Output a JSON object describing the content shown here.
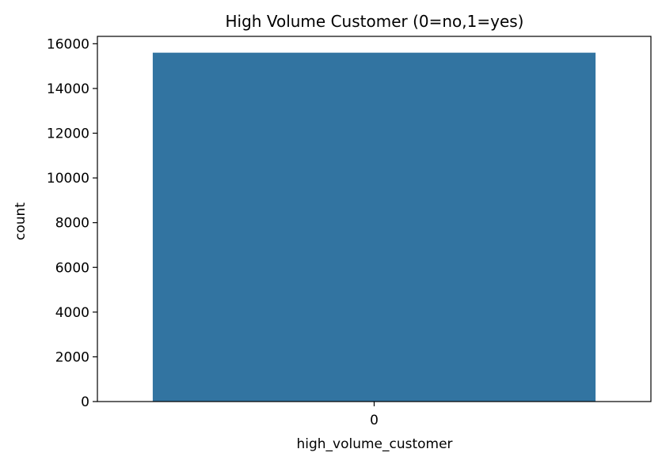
{
  "chart_data": {
    "type": "bar",
    "title": "High Volume Customer (0=no,1=yes)",
    "xlabel": "high_volume_customer",
    "ylabel": "count",
    "categories": [
      "0"
    ],
    "values": [
      15600
    ],
    "ylim": [
      0,
      16330
    ],
    "yticks": [
      0,
      2000,
      4000,
      6000,
      8000,
      10000,
      12000,
      14000,
      16000
    ],
    "grid": false,
    "bar_color": "#3274a1"
  }
}
